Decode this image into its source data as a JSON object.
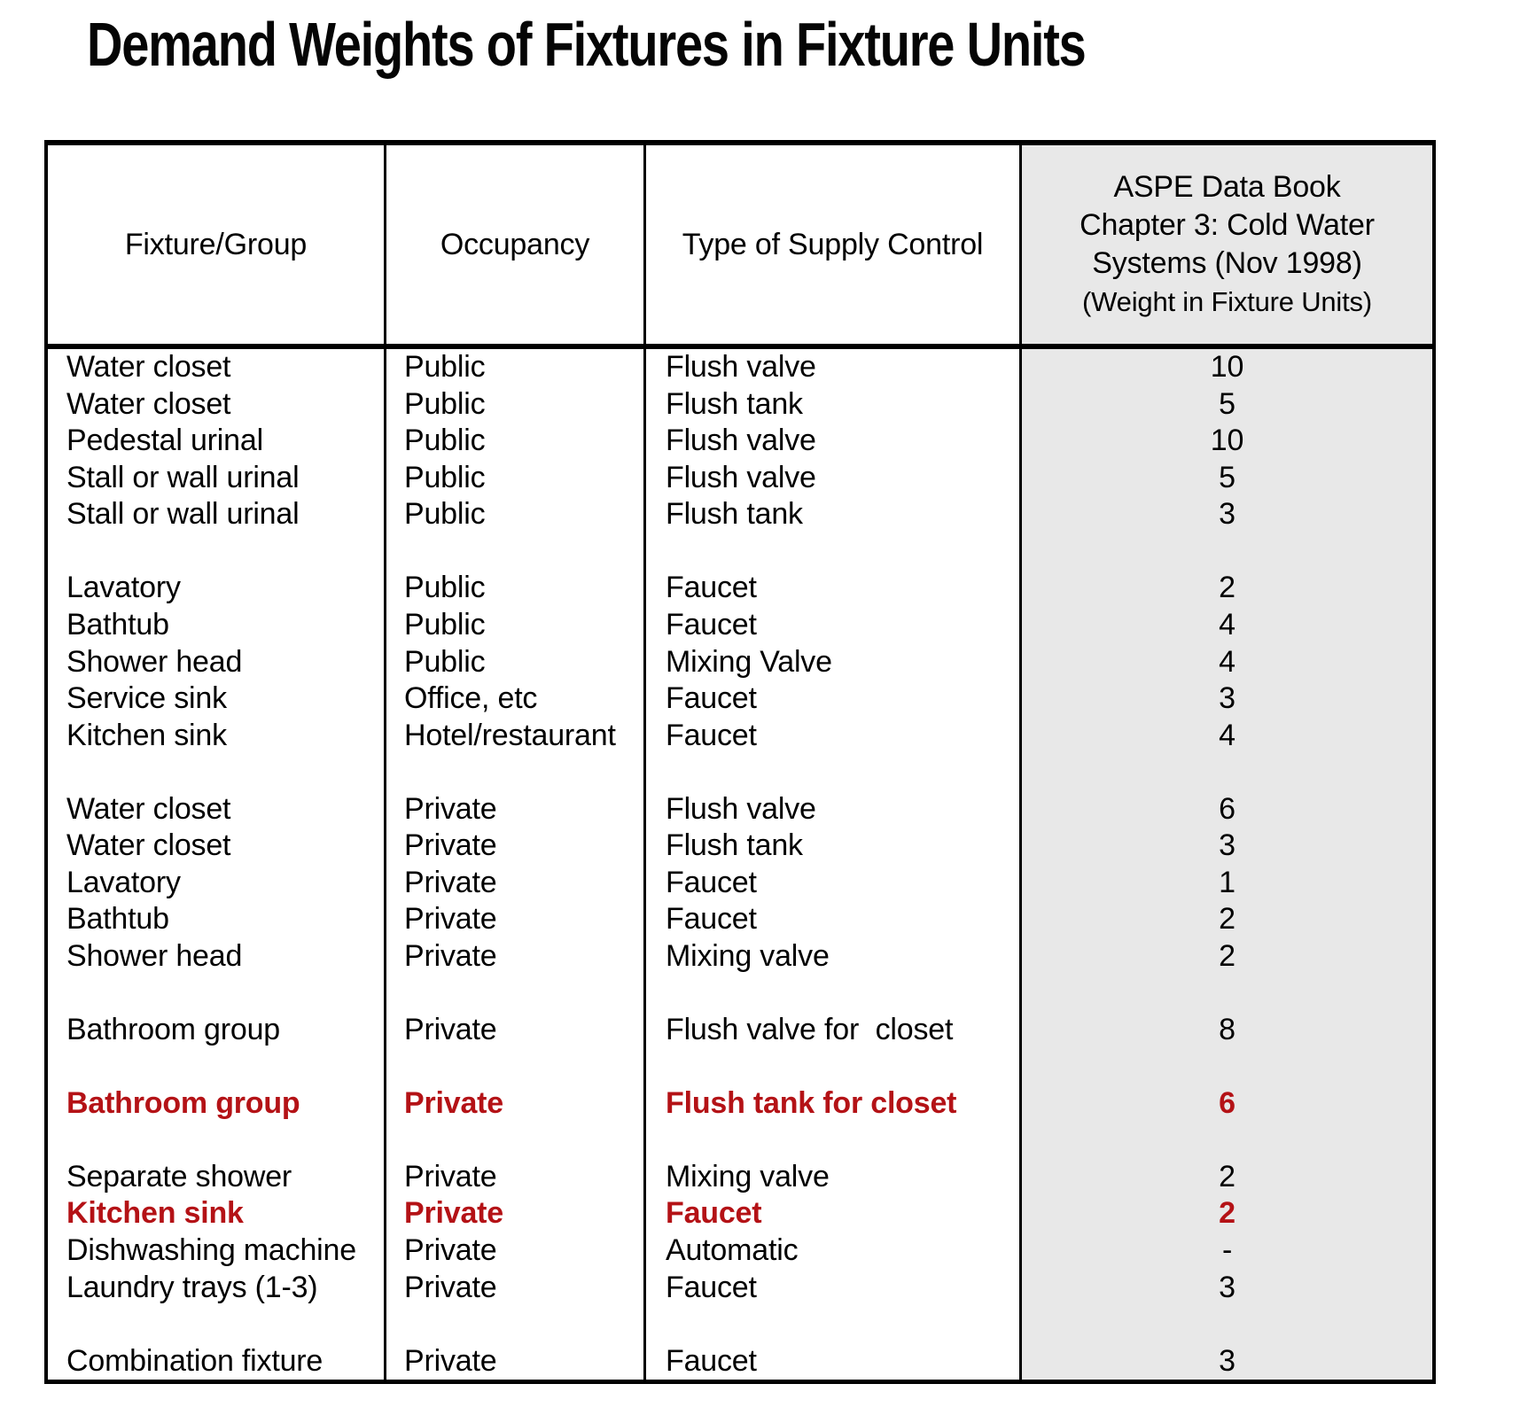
{
  "page_title": "Demand Weights of Fixtures in Fixture Units",
  "colors": {
    "accent_red": "#B41216",
    "column_shade": "#E8E8E8",
    "text": "#000000",
    "background": "#FFFFFF"
  },
  "table": {
    "headers": {
      "col1": "Fixture/Group",
      "col2": "Occupancy",
      "col3": "Type of Supply Control",
      "col4_lines": [
        "ASPE Data Book",
        "Chapter 3: Cold Water",
        "Systems (Nov 1998)",
        "(Weight in Fixture Units)"
      ]
    },
    "rows": [
      {
        "fixture": "Water closet",
        "occupancy": "Public",
        "control": "Flush valve",
        "weight": "10",
        "highlight": false
      },
      {
        "fixture": "Water closet",
        "occupancy": "Public",
        "control": "Flush tank",
        "weight": "5",
        "highlight": false
      },
      {
        "fixture": "Pedestal urinal",
        "occupancy": "Public",
        "control": "Flush valve",
        "weight": "10",
        "highlight": false
      },
      {
        "fixture": "Stall or wall urinal",
        "occupancy": "Public",
        "control": "Flush valve",
        "weight": "5",
        "highlight": false
      },
      {
        "fixture": "Stall or wall urinal",
        "occupancy": "Public",
        "control": "Flush tank",
        "weight": "3",
        "highlight": false
      },
      {
        "fixture": "",
        "occupancy": "",
        "control": "",
        "weight": "",
        "highlight": false
      },
      {
        "fixture": "Lavatory",
        "occupancy": "Public",
        "control": "Faucet",
        "weight": "2",
        "highlight": false
      },
      {
        "fixture": "Bathtub",
        "occupancy": "Public",
        "control": "Faucet",
        "weight": "4",
        "highlight": false
      },
      {
        "fixture": "Shower head",
        "occupancy": "Public",
        "control": "Mixing Valve",
        "weight": "4",
        "highlight": false
      },
      {
        "fixture": "Service sink",
        "occupancy": "Office, etc",
        "control": "Faucet",
        "weight": "3",
        "highlight": false
      },
      {
        "fixture": "Kitchen sink",
        "occupancy": "Hotel/restaurant",
        "control": "Faucet",
        "weight": "4",
        "highlight": false
      },
      {
        "fixture": "",
        "occupancy": "",
        "control": "",
        "weight": "",
        "highlight": false
      },
      {
        "fixture": "Water closet",
        "occupancy": "Private",
        "control": "Flush valve",
        "weight": "6",
        "highlight": false
      },
      {
        "fixture": "Water closet",
        "occupancy": "Private",
        "control": "Flush tank",
        "weight": "3",
        "highlight": false
      },
      {
        "fixture": "Lavatory",
        "occupancy": "Private",
        "control": "Faucet",
        "weight": "1",
        "highlight": false
      },
      {
        "fixture": "Bathtub",
        "occupancy": "Private",
        "control": "Faucet",
        "weight": "2",
        "highlight": false
      },
      {
        "fixture": "Shower head",
        "occupancy": "Private",
        "control": "Mixing valve",
        "weight": "2",
        "highlight": false
      },
      {
        "fixture": "",
        "occupancy": "",
        "control": "",
        "weight": "",
        "highlight": false
      },
      {
        "fixture": "Bathroom group",
        "occupancy": "Private",
        "control": "Flush valve for  closet",
        "weight": "8",
        "highlight": false
      },
      {
        "fixture": "",
        "occupancy": "",
        "control": "",
        "weight": "",
        "highlight": false
      },
      {
        "fixture": "Bathroom group",
        "occupancy": "Private",
        "control": "Flush tank for closet",
        "weight": "6",
        "highlight": true
      },
      {
        "fixture": "",
        "occupancy": "",
        "control": "",
        "weight": "",
        "highlight": false
      },
      {
        "fixture": "Separate shower",
        "occupancy": "Private",
        "control": "Mixing valve",
        "weight": "2",
        "highlight": false
      },
      {
        "fixture": "Kitchen sink",
        "occupancy": "Private",
        "control": "Faucet",
        "weight": "2",
        "highlight": true
      },
      {
        "fixture": "Dishwashing machine",
        "occupancy": "Private",
        "control": "Automatic",
        "weight": "-",
        "highlight": false
      },
      {
        "fixture": "Laundry trays (1-3)",
        "occupancy": "Private",
        "control": "Faucet",
        "weight": "3",
        "highlight": false
      },
      {
        "fixture": "",
        "occupancy": "",
        "control": "",
        "weight": "",
        "highlight": false
      },
      {
        "fixture": "Combination fixture",
        "occupancy": "Private",
        "control": "Faucet",
        "weight": "3",
        "highlight": false
      }
    ]
  }
}
